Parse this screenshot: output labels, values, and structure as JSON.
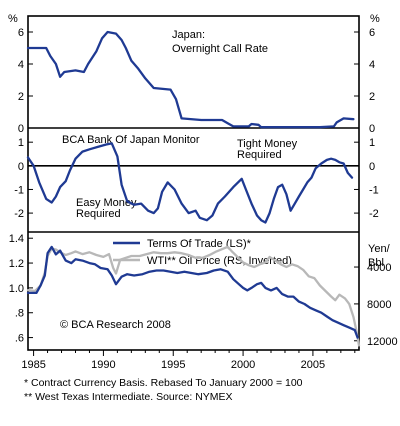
{
  "unit_left_top": "%",
  "unit_right_top": "%",
  "unit_right_bottom_1": "Yen/",
  "unit_right_bottom_2": "Bbl",
  "colors": {
    "navy": "#1f3a93",
    "gray": "#b8b8b8",
    "frame": "#000000"
  },
  "chart_data": [
    {
      "type": "line",
      "title": "Japan: Overnight Call Rate",
      "title_lines": [
        "Japan:",
        "Overnight Call Rate"
      ],
      "ylim": [
        0,
        7
      ],
      "yticks": [
        0,
        2,
        4,
        6
      ],
      "grid": false,
      "series": [
        {
          "name": "Japan: Overnight Call Rate",
          "color": "#1f3a93",
          "points": [
            [
              1984.6,
              5.0
            ],
            [
              1985.9,
              5.0
            ],
            [
              1986.2,
              4.5
            ],
            [
              1986.6,
              4.0
            ],
            [
              1986.9,
              3.2
            ],
            [
              1987.2,
              3.5
            ],
            [
              1988.0,
              3.6
            ],
            [
              1988.6,
              3.5
            ],
            [
              1988.9,
              4.0
            ],
            [
              1989.5,
              4.8
            ],
            [
              1989.9,
              5.6
            ],
            [
              1990.3,
              6.0
            ],
            [
              1990.9,
              5.9
            ],
            [
              1991.3,
              5.5
            ],
            [
              1991.6,
              5.0
            ],
            [
              1992.0,
              4.2
            ],
            [
              1992.5,
              3.7
            ],
            [
              1993.0,
              3.1
            ],
            [
              1993.6,
              2.5
            ],
            [
              1994.8,
              2.4
            ],
            [
              1995.2,
              1.8
            ],
            [
              1995.6,
              0.6
            ],
            [
              1997.0,
              0.5
            ],
            [
              1998.5,
              0.5
            ],
            [
              1998.9,
              0.3
            ],
            [
              1999.3,
              0.1
            ],
            [
              2000.4,
              0.1
            ],
            [
              2000.6,
              0.25
            ],
            [
              2001.1,
              0.2
            ],
            [
              2001.3,
              0.05
            ],
            [
              2005.5,
              0.05
            ],
            [
              2006.5,
              0.1
            ],
            [
              2006.7,
              0.35
            ],
            [
              2007.2,
              0.6
            ],
            [
              2007.9,
              0.55
            ]
          ]
        }
      ]
    },
    {
      "type": "line",
      "title": "BCA Bank Of Japan Monitor",
      "ylim": [
        -2.8,
        1.6
      ],
      "yticks": [
        -2,
        -1,
        0,
        1
      ],
      "zero_line": true,
      "annotations": [
        {
          "text": "Tight Money",
          "text2": "Required"
        },
        {
          "text": "Easy Money",
          "text2": "Required"
        }
      ],
      "series": [
        {
          "name": "BCA Bank Of Japan Monitor",
          "color": "#1f3a93",
          "points": [
            [
              1984.6,
              0.35
            ],
            [
              1985.0,
              0.0
            ],
            [
              1985.4,
              -0.7
            ],
            [
              1985.9,
              -1.4
            ],
            [
              1986.3,
              -1.55
            ],
            [
              1986.6,
              -1.3
            ],
            [
              1986.9,
              -0.9
            ],
            [
              1987.3,
              -0.65
            ],
            [
              1987.6,
              -0.2
            ],
            [
              1988.0,
              0.3
            ],
            [
              1988.5,
              0.6
            ],
            [
              1989.0,
              0.7
            ],
            [
              1989.6,
              0.8
            ],
            [
              1990.2,
              0.9
            ],
            [
              1990.6,
              0.95
            ],
            [
              1991.0,
              0.4
            ],
            [
              1991.3,
              -0.8
            ],
            [
              1991.7,
              -1.5
            ],
            [
              1992.2,
              -1.65
            ],
            [
              1992.7,
              -1.6
            ],
            [
              1993.2,
              -1.9
            ],
            [
              1993.6,
              -2.0
            ],
            [
              1993.9,
              -1.8
            ],
            [
              1994.2,
              -1.1
            ],
            [
              1994.6,
              -0.7
            ],
            [
              1995.1,
              -1.0
            ],
            [
              1995.6,
              -1.6
            ],
            [
              1996.1,
              -2.0
            ],
            [
              1996.6,
              -1.9
            ],
            [
              1996.9,
              -2.2
            ],
            [
              1997.4,
              -2.3
            ],
            [
              1997.8,
              -2.1
            ],
            [
              1998.2,
              -1.6
            ],
            [
              1998.7,
              -1.3
            ],
            [
              1999.3,
              -0.9
            ],
            [
              1999.9,
              -0.55
            ],
            [
              2000.2,
              -1.0
            ],
            [
              2000.6,
              -1.6
            ],
            [
              2001.0,
              -2.1
            ],
            [
              2001.3,
              -2.3
            ],
            [
              2001.6,
              -2.4
            ],
            [
              2001.9,
              -2.0
            ],
            [
              2002.2,
              -1.4
            ],
            [
              2002.5,
              -0.9
            ],
            [
              2002.8,
              -0.8
            ],
            [
              2003.1,
              -1.2
            ],
            [
              2003.4,
              -1.9
            ],
            [
              2003.7,
              -1.6
            ],
            [
              2004.0,
              -1.3
            ],
            [
              2004.3,
              -1.0
            ],
            [
              2004.6,
              -0.7
            ],
            [
              2004.9,
              -0.5
            ],
            [
              2005.2,
              -0.1
            ],
            [
              2005.6,
              0.1
            ],
            [
              2006.0,
              0.25
            ],
            [
              2006.3,
              0.3
            ],
            [
              2006.6,
              0.25
            ],
            [
              2006.9,
              0.15
            ],
            [
              2007.2,
              0.1
            ],
            [
              2007.5,
              -0.3
            ],
            [
              2007.8,
              -0.5
            ]
          ]
        }
      ]
    },
    {
      "type": "line",
      "ylim": [
        0.5,
        1.45
      ],
      "yticks": [
        0.6,
        0.8,
        1.0,
        1.2,
        1.4
      ],
      "ytick_labels": [
        ".6",
        ".8",
        "1.0",
        "1.2",
        "1.4"
      ],
      "right_axis": {
        "inverted": true,
        "ylim": [
          200,
          13000
        ],
        "yticks": [
          4000,
          8000,
          12000
        ]
      },
      "xlim": [
        1984.6,
        2008.3
      ],
      "xticks": [
        1985,
        1990,
        1995,
        2000,
        2005
      ],
      "annotations": [
        {
          "text": "© BCA Research 2008"
        }
      ],
      "series": [
        {
          "name": "Terms Of Trade (LS)*",
          "color": "#1f3a93",
          "axis": "left",
          "points": [
            [
              1984.6,
              0.96
            ],
            [
              1985.2,
              0.96
            ],
            [
              1985.5,
              1.02
            ],
            [
              1985.8,
              1.1
            ],
            [
              1986.0,
              1.28
            ],
            [
              1986.3,
              1.33
            ],
            [
              1986.6,
              1.27
            ],
            [
              1986.9,
              1.3
            ],
            [
              1987.3,
              1.22
            ],
            [
              1987.7,
              1.2
            ],
            [
              1988.0,
              1.23
            ],
            [
              1988.5,
              1.22
            ],
            [
              1989.0,
              1.2
            ],
            [
              1989.4,
              1.19
            ],
            [
              1989.8,
              1.16
            ],
            [
              1990.3,
              1.15
            ],
            [
              1990.6,
              1.1
            ],
            [
              1990.9,
              1.03
            ],
            [
              1991.3,
              1.09
            ],
            [
              1991.7,
              1.11
            ],
            [
              1992.2,
              1.1
            ],
            [
              1992.8,
              1.11
            ],
            [
              1993.3,
              1.13
            ],
            [
              1993.8,
              1.14
            ],
            [
              1994.3,
              1.14
            ],
            [
              1994.8,
              1.13
            ],
            [
              1995.3,
              1.12
            ],
            [
              1995.8,
              1.13
            ],
            [
              1996.3,
              1.12
            ],
            [
              1996.8,
              1.11
            ],
            [
              1997.4,
              1.12
            ],
            [
              1997.9,
              1.14
            ],
            [
              1998.4,
              1.15
            ],
            [
              1998.9,
              1.13
            ],
            [
              1999.3,
              1.07
            ],
            [
              1999.7,
              1.03
            ],
            [
              2000.0,
              1.0
            ],
            [
              2000.3,
              0.98
            ],
            [
              2000.6,
              1.0
            ],
            [
              2001.0,
              1.03
            ],
            [
              2001.3,
              1.04
            ],
            [
              2001.6,
              1.0
            ],
            [
              2002.0,
              0.98
            ],
            [
              2002.4,
              1.0
            ],
            [
              2002.8,
              0.95
            ],
            [
              2003.2,
              0.93
            ],
            [
              2003.6,
              0.93
            ],
            [
              2004.0,
              0.89
            ],
            [
              2004.4,
              0.87
            ],
            [
              2004.8,
              0.84
            ],
            [
              2005.2,
              0.82
            ],
            [
              2005.6,
              0.8
            ],
            [
              2006.0,
              0.77
            ],
            [
              2006.4,
              0.74
            ],
            [
              2006.8,
              0.72
            ],
            [
              2007.2,
              0.7
            ],
            [
              2007.6,
              0.68
            ],
            [
              2008.0,
              0.66
            ],
            [
              2008.2,
              0.6
            ]
          ]
        },
        {
          "name": "WTI** Oil Price (RS, Inverted)",
          "color": "#b8b8b8",
          "axis": "right",
          "points": [
            [
              1984.6,
              6500
            ],
            [
              1985.1,
              6600
            ],
            [
              1985.5,
              6000
            ],
            [
              1985.8,
              4600
            ],
            [
              1986.0,
              2800
            ],
            [
              1986.3,
              2000
            ],
            [
              1986.6,
              2100
            ],
            [
              1986.9,
              2400
            ],
            [
              1987.3,
              2700
            ],
            [
              1987.7,
              2500
            ],
            [
              1988.0,
              2300
            ],
            [
              1988.5,
              2600
            ],
            [
              1989.0,
              2400
            ],
            [
              1989.5,
              2700
            ],
            [
              1990.0,
              2900
            ],
            [
              1990.4,
              2600
            ],
            [
              1990.7,
              4100
            ],
            [
              1990.9,
              4700
            ],
            [
              1991.2,
              3200
            ],
            [
              1991.6,
              3000
            ],
            [
              1992.0,
              2800
            ],
            [
              1992.6,
              2800
            ],
            [
              1993.1,
              2600
            ],
            [
              1993.6,
              2400
            ],
            [
              1994.1,
              2500
            ],
            [
              1994.6,
              2500
            ],
            [
              1995.1,
              2400
            ],
            [
              1995.6,
              2500
            ],
            [
              1996.1,
              2700
            ],
            [
              1996.6,
              3000
            ],
            [
              1997.1,
              3000
            ],
            [
              1997.6,
              2700
            ],
            [
              1998.1,
              2300
            ],
            [
              1998.6,
              2000
            ],
            [
              1998.9,
              1800
            ],
            [
              1999.2,
              2300
            ],
            [
              1999.6,
              2900
            ],
            [
              2000.0,
              3500
            ],
            [
              2000.4,
              3800
            ],
            [
              2000.8,
              4000
            ],
            [
              2001.2,
              3700
            ],
            [
              2001.6,
              3500
            ],
            [
              2001.9,
              2900
            ],
            [
              2002.3,
              3300
            ],
            [
              2002.7,
              3700
            ],
            [
              2003.1,
              4000
            ],
            [
              2003.5,
              3700
            ],
            [
              2003.9,
              3900
            ],
            [
              2004.3,
              4300
            ],
            [
              2004.7,
              5000
            ],
            [
              2005.1,
              5200
            ],
            [
              2005.5,
              6000
            ],
            [
              2005.9,
              6600
            ],
            [
              2006.3,
              7200
            ],
            [
              2006.6,
              7600
            ],
            [
              2006.9,
              7000
            ],
            [
              2007.3,
              7400
            ],
            [
              2007.6,
              8000
            ],
            [
              2007.9,
              9400
            ],
            [
              2008.1,
              10800
            ],
            [
              2008.3,
              12500
            ]
          ]
        }
      ]
    }
  ],
  "footnotes": [
    "*  Contract Currency Basis. Rebased To January 2000 = 100",
    "** West Texas Intermediate. Source: NYMEX"
  ]
}
